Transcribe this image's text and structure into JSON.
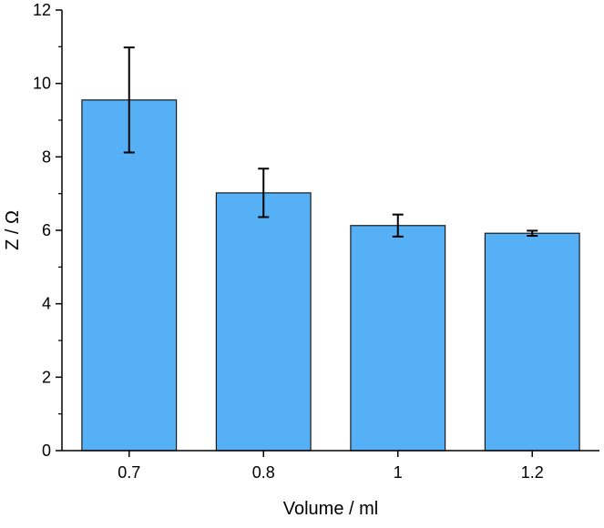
{
  "chart_data": {
    "type": "bar",
    "title": "",
    "xlabel": "Volume / ml",
    "ylabel": "Z / Ω",
    "categories": [
      "0.7",
      "0.8",
      "1",
      "1.2"
    ],
    "values": [
      9.55,
      7.02,
      6.13,
      5.92
    ],
    "error": [
      1.43,
      0.66,
      0.3,
      0.07
    ],
    "ylim": [
      0,
      12
    ],
    "yticks": [
      "0",
      "2",
      "4",
      "6",
      "8",
      "10",
      "12"
    ],
    "grid": false,
    "legend": "none",
    "bar_color": "#56b0f5",
    "edge_color": "#1a1a1a",
    "error_color": "#000000"
  }
}
